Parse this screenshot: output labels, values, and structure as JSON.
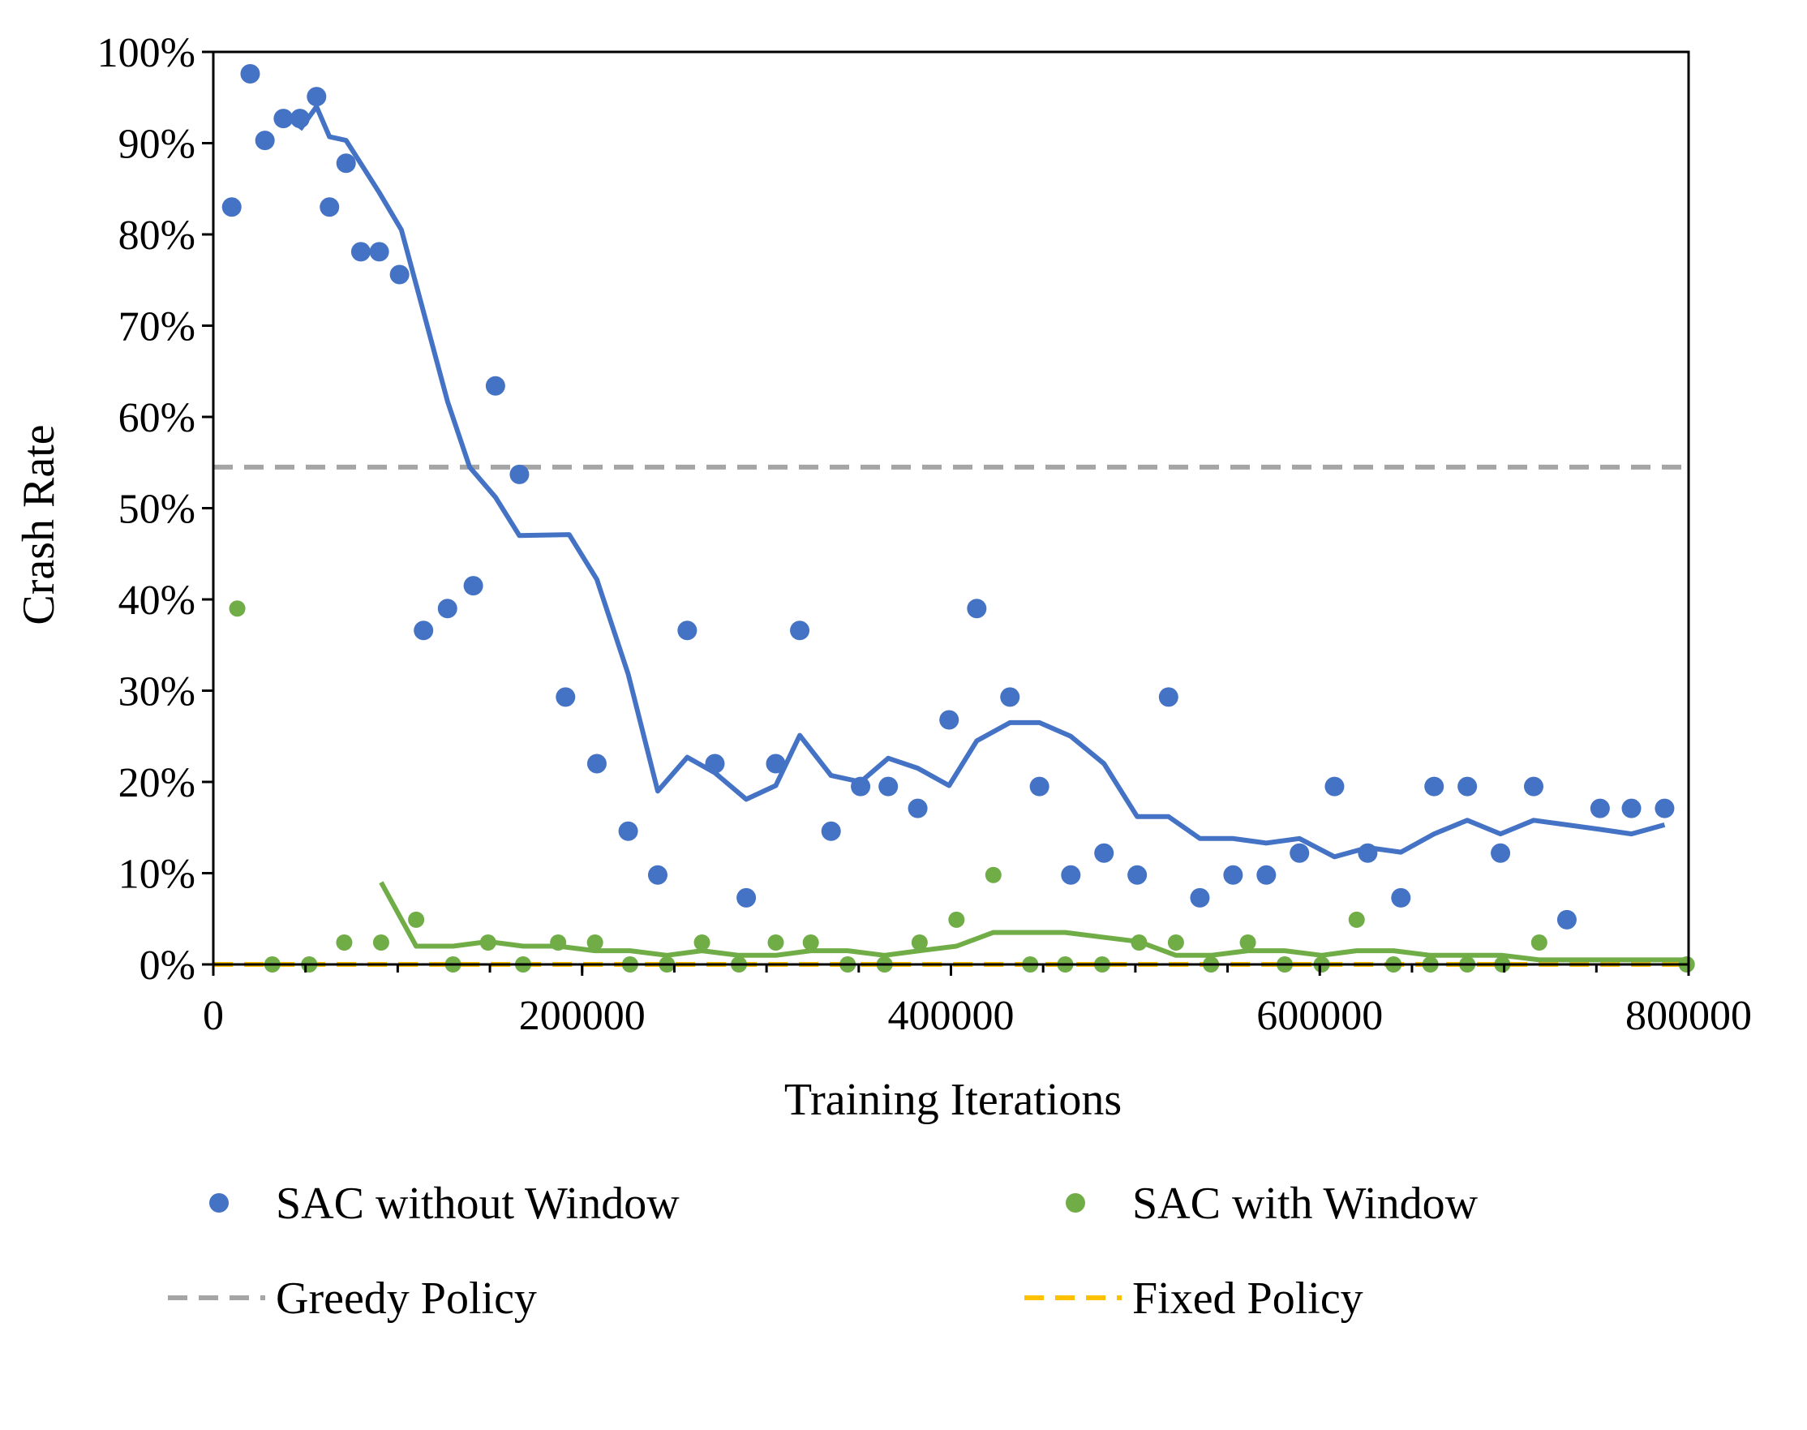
{
  "chart_data": {
    "type": "scatter",
    "title": "",
    "xlabel": "Training Iterations",
    "ylabel": "Crash Rate",
    "xlim": [
      0,
      800000
    ],
    "ylim": [
      0,
      1
    ],
    "x_ticks": [
      0,
      200000,
      400000,
      600000,
      800000
    ],
    "x_tick_labels": [
      "0",
      "200000",
      "400000",
      "600000",
      "800000"
    ],
    "y_ticks": [
      0,
      0.1,
      0.2,
      0.3,
      0.4,
      0.5,
      0.6,
      0.7,
      0.8,
      0.9,
      1.0
    ],
    "y_tick_labels": [
      "0%",
      "10%",
      "20%",
      "30%",
      "40%",
      "50%",
      "60%",
      "70%",
      "80%",
      "90%",
      "100%"
    ],
    "grid": false,
    "legend_position": "bottom",
    "colors": {
      "sac_without_window": "#4472C4",
      "sac_with_window": "#70AD47",
      "greedy_policy": "#A5A5A5",
      "fixed_policy": "#FFC000"
    },
    "series": [
      {
        "name": "SAC without Window",
        "kind": "scatter+moving-average",
        "color_key": "sac_without_window",
        "points": [
          [
            10000,
            0.83
          ],
          [
            20000,
            0.976
          ],
          [
            28000,
            0.903
          ],
          [
            38000,
            0.927
          ],
          [
            47000,
            0.927
          ],
          [
            56000,
            0.951
          ],
          [
            63000,
            0.83
          ],
          [
            72000,
            0.878
          ],
          [
            80000,
            0.781
          ],
          [
            90000,
            0.781
          ],
          [
            101000,
            0.756
          ],
          [
            114000,
            0.366
          ],
          [
            127000,
            0.39
          ],
          [
            141000,
            0.415
          ],
          [
            153000,
            0.634
          ],
          [
            166000,
            0.537
          ],
          [
            191000,
            0.293
          ],
          [
            208000,
            0.22
          ],
          [
            225000,
            0.146
          ],
          [
            241000,
            0.098
          ],
          [
            257000,
            0.366
          ],
          [
            272000,
            0.22
          ],
          [
            289000,
            0.073
          ],
          [
            305000,
            0.22
          ],
          [
            318000,
            0.366
          ],
          [
            335000,
            0.146
          ],
          [
            351000,
            0.195
          ],
          [
            366000,
            0.195
          ],
          [
            382000,
            0.171
          ],
          [
            399000,
            0.268
          ],
          [
            414000,
            0.39
          ],
          [
            432000,
            0.293
          ],
          [
            448000,
            0.195
          ],
          [
            465000,
            0.098
          ],
          [
            483000,
            0.122
          ],
          [
            501000,
            0.098
          ],
          [
            518000,
            0.293
          ],
          [
            535000,
            0.073
          ],
          [
            553000,
            0.098
          ],
          [
            571000,
            0.098
          ],
          [
            589000,
            0.122
          ],
          [
            608000,
            0.195
          ],
          [
            626000,
            0.122
          ],
          [
            644000,
            0.073
          ],
          [
            662000,
            0.195
          ],
          [
            680000,
            0.195
          ],
          [
            698000,
            0.122
          ],
          [
            716000,
            0.195
          ],
          [
            734000,
            0.049
          ],
          [
            752000,
            0.171
          ],
          [
            769000,
            0.171
          ],
          [
            787000,
            0.171
          ]
        ],
        "trend": [
          [
            47000,
            0.915
          ],
          [
            56000,
            0.94
          ],
          [
            63000,
            0.907
          ],
          [
            72000,
            0.903
          ],
          [
            90000,
            0.846
          ],
          [
            102000,
            0.805
          ],
          [
            114000,
            0.715
          ],
          [
            127000,
            0.617
          ],
          [
            139000,
            0.545
          ],
          [
            153000,
            0.512
          ],
          [
            166000,
            0.47
          ],
          [
            193000,
            0.471
          ],
          [
            208000,
            0.422
          ],
          [
            225000,
            0.318
          ],
          [
            241000,
            0.19
          ],
          [
            257000,
            0.227
          ],
          [
            272000,
            0.21
          ],
          [
            289000,
            0.181
          ],
          [
            305000,
            0.196
          ],
          [
            318000,
            0.251
          ],
          [
            335000,
            0.207
          ],
          [
            351000,
            0.2
          ],
          [
            366000,
            0.226
          ],
          [
            382000,
            0.215
          ],
          [
            399000,
            0.196
          ],
          [
            414000,
            0.245
          ],
          [
            432000,
            0.265
          ],
          [
            448000,
            0.265
          ],
          [
            465000,
            0.25
          ],
          [
            483000,
            0.22
          ],
          [
            501000,
            0.162
          ],
          [
            518000,
            0.162
          ],
          [
            535000,
            0.138
          ],
          [
            553000,
            0.138
          ],
          [
            571000,
            0.133
          ],
          [
            589000,
            0.138
          ],
          [
            608000,
            0.118
          ],
          [
            626000,
            0.128
          ],
          [
            644000,
            0.123
          ],
          [
            662000,
            0.143
          ],
          [
            680000,
            0.158
          ],
          [
            698000,
            0.143
          ],
          [
            716000,
            0.158
          ],
          [
            734000,
            0.153
          ],
          [
            752000,
            0.148
          ],
          [
            769000,
            0.143
          ],
          [
            787000,
            0.153
          ]
        ]
      },
      {
        "name": "SAC with Window",
        "kind": "scatter+moving-average",
        "color_key": "sac_with_window",
        "points": [
          [
            13000,
            0.39
          ],
          [
            32000,
            0.0
          ],
          [
            52000,
            0.0
          ],
          [
            71000,
            0.024
          ],
          [
            91000,
            0.024
          ],
          [
            110000,
            0.049
          ],
          [
            130000,
            0.0
          ],
          [
            149000,
            0.024
          ],
          [
            168000,
            0.0
          ],
          [
            187000,
            0.024
          ],
          [
            207000,
            0.024
          ],
          [
            226000,
            0.0
          ],
          [
            246000,
            0.0
          ],
          [
            265000,
            0.024
          ],
          [
            285000,
            0.0
          ],
          [
            305000,
            0.024
          ],
          [
            324000,
            0.024
          ],
          [
            344000,
            0.0
          ],
          [
            364000,
            0.0
          ],
          [
            383000,
            0.024
          ],
          [
            403000,
            0.049
          ],
          [
            423000,
            0.098
          ],
          [
            443000,
            0.0
          ],
          [
            462000,
            0.0
          ],
          [
            482000,
            0.0
          ],
          [
            502000,
            0.024
          ],
          [
            522000,
            0.024
          ],
          [
            541000,
            0.0
          ],
          [
            561000,
            0.024
          ],
          [
            581000,
            0.0
          ],
          [
            601000,
            0.0
          ],
          [
            620000,
            0.049
          ],
          [
            640000,
            0.0
          ],
          [
            660000,
            0.0
          ],
          [
            680000,
            0.0
          ],
          [
            699000,
            0.0
          ],
          [
            719000,
            0.024
          ],
          [
            799000,
            0.0
          ]
        ],
        "trend": [
          [
            91000,
            0.09
          ],
          [
            110000,
            0.02
          ],
          [
            130000,
            0.02
          ],
          [
            149000,
            0.025
          ],
          [
            168000,
            0.02
          ],
          [
            187000,
            0.02
          ],
          [
            207000,
            0.015
          ],
          [
            226000,
            0.015
          ],
          [
            246000,
            0.01
          ],
          [
            265000,
            0.015
          ],
          [
            285000,
            0.01
          ],
          [
            305000,
            0.01
          ],
          [
            324000,
            0.015
          ],
          [
            344000,
            0.015
          ],
          [
            364000,
            0.01
          ],
          [
            383000,
            0.015
          ],
          [
            403000,
            0.02
          ],
          [
            423000,
            0.035
          ],
          [
            443000,
            0.035
          ],
          [
            462000,
            0.035
          ],
          [
            482000,
            0.03
          ],
          [
            502000,
            0.025
          ],
          [
            522000,
            0.01
          ],
          [
            541000,
            0.01
          ],
          [
            561000,
            0.015
          ],
          [
            581000,
            0.015
          ],
          [
            601000,
            0.01
          ],
          [
            620000,
            0.015
          ],
          [
            640000,
            0.015
          ],
          [
            660000,
            0.01
          ],
          [
            680000,
            0.01
          ],
          [
            699000,
            0.01
          ],
          [
            719000,
            0.005
          ],
          [
            799000,
            0.005
          ]
        ]
      },
      {
        "name": "Greedy Policy",
        "kind": "dashed-line",
        "color_key": "greedy_policy",
        "value": 0.545
      },
      {
        "name": "Fixed Policy",
        "kind": "dashed-line",
        "color_key": "fixed_policy",
        "value": 0.0
      }
    ]
  }
}
